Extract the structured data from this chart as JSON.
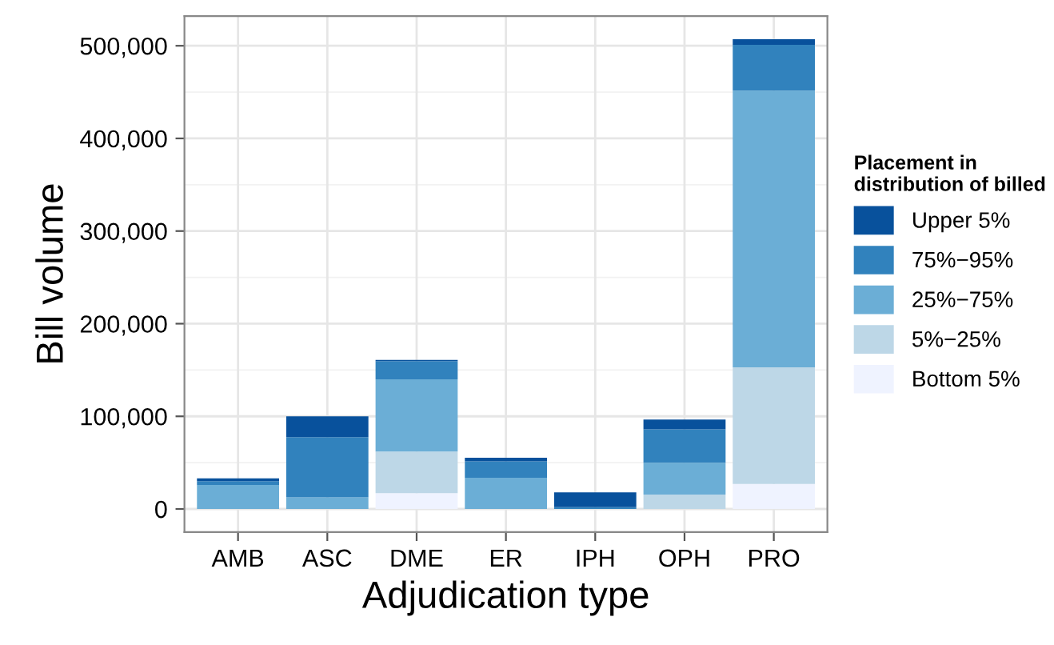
{
  "chart_data": {
    "type": "bar",
    "stacked": true,
    "xlabel": "Adjudication type",
    "ylabel": "Bill volume",
    "legend_title": "Placement in\ndistribution of billed",
    "categories": [
      "AMB",
      "ASC",
      "DME",
      "ER",
      "IPH",
      "OPH",
      "PRO"
    ],
    "series": [
      {
        "name": "Bottom 5%",
        "color": "#eff3ff",
        "values": [
          0,
          0,
          17000,
          0,
          0,
          0,
          27000
        ]
      },
      {
        "name": "5%−25%",
        "color": "#bdd7e7",
        "values": [
          0,
          0,
          45000,
          0,
          0,
          15500,
          126000
        ]
      },
      {
        "name": "25%−75%",
        "color": "#6baed6",
        "values": [
          26000,
          12500,
          78000,
          33600,
          0,
          34500,
          298600
        ]
      },
      {
        "name": "75%−95%",
        "color": "#3182bd",
        "values": [
          4000,
          65000,
          19500,
          17800,
          2000,
          36000,
          49400
        ]
      },
      {
        "name": "Upper 5%",
        "color": "#08519c",
        "values": [
          3000,
          22500,
          1500,
          4000,
          16000,
          10500,
          6000
        ]
      }
    ],
    "ylim": [
      -25000,
      532000
    ],
    "yticks": [
      {
        "value": 0,
        "label": "0"
      },
      {
        "value": 100000,
        "label": "100,000"
      },
      {
        "value": 200000,
        "label": "200,000"
      },
      {
        "value": 300000,
        "label": "300,000"
      },
      {
        "value": 400000,
        "label": "400,000"
      },
      {
        "value": 500000,
        "label": "500,000"
      }
    ],
    "grid": true,
    "legend": "right"
  }
}
